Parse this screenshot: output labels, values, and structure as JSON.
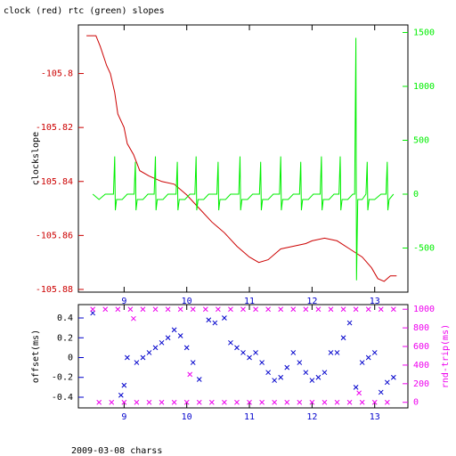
{
  "chart_data": [
    {
      "type": "line",
      "title": "clock (red) rtc (green) slopes",
      "ylabel": "clockslope",
      "xlim": [
        8.27,
        13.53
      ],
      "xticks": [
        9,
        10,
        11,
        12,
        13
      ],
      "ylim": [
        -105.881,
        -105.782
      ],
      "yticks": [
        -105.8,
        -105.82,
        -105.84,
        -105.86,
        -105.88
      ],
      "y2lim": [
        -909,
        1570
      ],
      "y2ticks": [
        -500,
        0,
        500,
        1000,
        1500
      ],
      "series": [
        {
          "color": "#cc0000",
          "x": [
            8.4,
            8.55,
            8.62,
            8.72,
            8.78,
            8.85,
            8.9,
            9.0,
            9.05,
            9.15,
            9.25,
            9.4,
            9.6,
            9.8,
            10.0,
            10.2,
            10.4,
            10.6,
            10.8,
            11.0,
            11.15,
            11.3,
            11.5,
            11.7,
            11.9,
            12.0,
            12.2,
            12.4,
            12.6,
            12.8,
            12.95,
            13.05,
            13.15,
            13.25,
            13.35
          ],
          "values": [
            -105.786,
            -105.786,
            -105.79,
            -105.797,
            -105.8,
            -105.807,
            -105.815,
            -105.82,
            -105.826,
            -105.83,
            -105.836,
            -105.838,
            -105.84,
            -105.841,
            -105.845,
            -105.85,
            -105.855,
            -105.859,
            -105.864,
            -105.868,
            -105.87,
            -105.869,
            -105.865,
            -105.864,
            -105.863,
            -105.862,
            -105.861,
            -105.862,
            -105.865,
            -105.868,
            -105.872,
            -105.876,
            -105.877,
            -105.875,
            -105.875
          ]
        },
        {
          "color": "#00ee00",
          "axis": "y2",
          "x": [
            8.5,
            8.6,
            8.7,
            8.83,
            8.85,
            8.86,
            8.88,
            8.97,
            9.05,
            9.16,
            9.18,
            9.19,
            9.21,
            9.3,
            9.38,
            9.48,
            9.5,
            9.51,
            9.53,
            9.62,
            9.7,
            9.83,
            9.85,
            9.86,
            9.88,
            9.97,
            10.05,
            10.13,
            10.15,
            10.16,
            10.18,
            10.27,
            10.35,
            10.48,
            10.5,
            10.51,
            10.53,
            10.62,
            10.7,
            10.83,
            10.85,
            10.86,
            10.88,
            10.97,
            11.05,
            11.16,
            11.18,
            11.19,
            11.21,
            11.3,
            11.38,
            11.48,
            11.5,
            11.51,
            11.53,
            11.62,
            11.7,
            11.8,
            11.82,
            11.83,
            11.85,
            11.94,
            12.02,
            12.13,
            12.15,
            12.16,
            12.18,
            12.27,
            12.35,
            12.43,
            12.45,
            12.46,
            12.48,
            12.57,
            12.65,
            12.68,
            12.7,
            12.71,
            12.73,
            12.8,
            12.86,
            12.88,
            12.89,
            12.91,
            13.0,
            13.1,
            13.18,
            13.2,
            13.21,
            13.23,
            13.3
          ],
          "values": [
            0,
            -50,
            0,
            0,
            350,
            -150,
            -50,
            -50,
            0,
            0,
            300,
            -150,
            -50,
            -50,
            0,
            0,
            350,
            -150,
            -50,
            -50,
            0,
            0,
            300,
            -150,
            -50,
            -50,
            0,
            0,
            350,
            -150,
            -50,
            -50,
            0,
            0,
            300,
            -150,
            -50,
            -50,
            0,
            0,
            350,
            -150,
            -50,
            -50,
            0,
            0,
            300,
            -150,
            -50,
            -50,
            0,
            0,
            350,
            -150,
            -50,
            -50,
            0,
            0,
            300,
            -150,
            -50,
            -50,
            0,
            0,
            350,
            -150,
            -50,
            -50,
            0,
            0,
            350,
            -150,
            -50,
            -50,
            0,
            0,
            1450,
            -800,
            -50,
            -50,
            0,
            300,
            -150,
            -50,
            -50,
            0,
            0,
            300,
            -150,
            -50,
            0
          ]
        }
      ]
    },
    {
      "type": "scatter",
      "ylabel": "offset(ms)",
      "y2label": "rnd-trip(ms)",
      "caption": "2009-03-08 charss",
      "xlim": [
        8.27,
        13.53
      ],
      "xticks": [
        9,
        10,
        11,
        12,
        13
      ],
      "ylim": [
        -0.508,
        0.535
      ],
      "yticks": [
        -0.4,
        -0.2,
        0,
        0.2,
        0.4
      ],
      "y2lim": [
        -60,
        1050
      ],
      "y2ticks": [
        0,
        200,
        400,
        600,
        800,
        1000
      ],
      "series": [
        {
          "color": "#0000cc",
          "x": [
            8.5,
            8.95,
            9.0,
            9.05,
            9.2,
            9.3,
            9.4,
            9.5,
            9.6,
            9.7,
            9.8,
            9.9,
            10.0,
            10.1,
            10.2,
            10.35,
            10.45,
            10.6,
            10.7,
            10.8,
            10.9,
            11.0,
            11.1,
            11.2,
            11.3,
            11.4,
            11.5,
            11.6,
            11.7,
            11.8,
            11.9,
            12.0,
            12.1,
            12.2,
            12.3,
            12.4,
            12.5,
            12.6,
            12.7,
            12.8,
            12.9,
            13.0,
            13.1,
            13.2,
            13.3
          ],
          "values": [
            0.45,
            -0.38,
            -0.28,
            0.0,
            -0.05,
            0.0,
            0.05,
            0.1,
            0.15,
            0.2,
            0.28,
            0.22,
            0.1,
            -0.05,
            -0.22,
            0.38,
            0.35,
            0.4,
            0.15,
            0.1,
            0.05,
            0.0,
            0.05,
            -0.05,
            -0.15,
            -0.23,
            -0.2,
            -0.1,
            0.05,
            -0.05,
            -0.15,
            -0.23,
            -0.2,
            -0.15,
            0.05,
            0.05,
            0.2,
            0.35,
            -0.3,
            -0.05,
            0.0,
            0.05,
            -0.35,
            -0.25,
            -0.2
          ]
        },
        {
          "color": "#ee00ee",
          "axis": "y2",
          "x": [
            8.5,
            8.7,
            8.9,
            9.1,
            9.3,
            9.5,
            9.7,
            9.9,
            10.1,
            10.3,
            10.5,
            10.7,
            10.9,
            11.1,
            11.3,
            11.5,
            11.7,
            11.9,
            12.1,
            12.3,
            12.5,
            12.7,
            12.9,
            13.1,
            13.3,
            8.6,
            8.8,
            9.0,
            9.2,
            9.4,
            9.6,
            9.8,
            10.0,
            10.2,
            10.4,
            10.6,
            10.8,
            11.0,
            11.2,
            11.4,
            11.6,
            11.8,
            12.0,
            12.2,
            12.4,
            12.6,
            12.8,
            13.0,
            13.2,
            9.15,
            10.05,
            12.75
          ],
          "values": [
            1000,
            1000,
            1000,
            1000,
            1000,
            1000,
            1000,
            1000,
            1000,
            1000,
            1000,
            1000,
            1000,
            1000,
            1000,
            1000,
            1000,
            1000,
            1000,
            1000,
            1000,
            1000,
            1000,
            1000,
            1000,
            0,
            0,
            0,
            0,
            0,
            0,
            0,
            0,
            0,
            0,
            0,
            0,
            0,
            0,
            0,
            0,
            0,
            0,
            0,
            0,
            0,
            0,
            0,
            0,
            900,
            300,
            100
          ]
        }
      ]
    }
  ]
}
